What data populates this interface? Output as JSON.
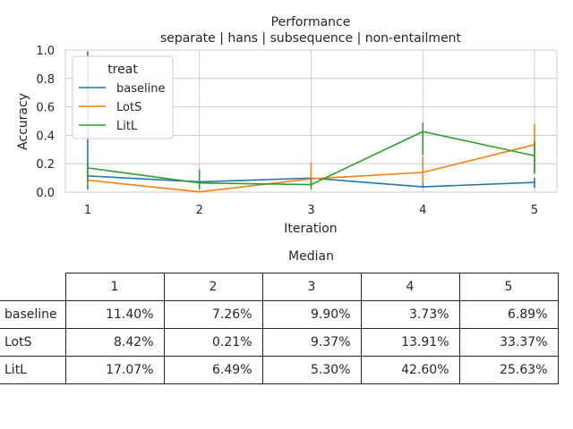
{
  "chart_data": {
    "type": "line",
    "title": "Performance",
    "subtitle": "separate | hans | subsequence | non-entailment",
    "xlabel": "Iteration",
    "ylabel": "Accuracy",
    "x": [
      1,
      2,
      3,
      4,
      5
    ],
    "xlim": [
      0.8,
      5.2
    ],
    "ylim": [
      0.0,
      1.0
    ],
    "yticks": [
      "0.0",
      "0.2",
      "0.4",
      "0.6",
      "0.8",
      "1.0"
    ],
    "xticks": [
      "1",
      "2",
      "3",
      "4",
      "5"
    ],
    "grid": true,
    "legend": {
      "title": "treat",
      "placement": "upper-left"
    },
    "series": [
      {
        "name": "baseline",
        "color": "#1f77b4",
        "values": [
          0.114,
          0.0726,
          0.099,
          0.0373,
          0.0689
        ],
        "err_low": [
          0.02,
          0.06,
          0.08,
          0.03,
          0.03
        ],
        "err_high": [
          0.99,
          0.09,
          0.11,
          0.05,
          0.1
        ]
      },
      {
        "name": "LotS",
        "color": "#ff7f0e",
        "values": [
          0.0842,
          0.0021,
          0.0937,
          0.1391,
          0.3337
        ],
        "err_low": [
          0.05,
          0.0,
          0.05,
          0.05,
          0.15
        ],
        "err_high": [
          0.12,
          0.01,
          0.21,
          0.25,
          0.48
        ]
      },
      {
        "name": "LitL",
        "color": "#2ca02c",
        "values": [
          0.1707,
          0.0649,
          0.053,
          0.426,
          0.2563
        ],
        "err_low": [
          0.07,
          0.02,
          0.02,
          0.26,
          0.13
        ],
        "err_high": [
          0.18,
          0.16,
          0.09,
          0.49,
          0.36
        ]
      }
    ]
  },
  "table": {
    "title": "Median",
    "columns": [
      "1",
      "2",
      "3",
      "4",
      "5"
    ],
    "rows": [
      {
        "label": "baseline",
        "cells": [
          "11.40%",
          "7.26%",
          "9.90%",
          "3.73%",
          "6.89%"
        ]
      },
      {
        "label": "LotS",
        "cells": [
          "8.42%",
          "0.21%",
          "9.37%",
          "13.91%",
          "33.37%"
        ]
      },
      {
        "label": "LitL",
        "cells": [
          "17.07%",
          "6.49%",
          "5.30%",
          "42.60%",
          "25.63%"
        ]
      }
    ]
  }
}
